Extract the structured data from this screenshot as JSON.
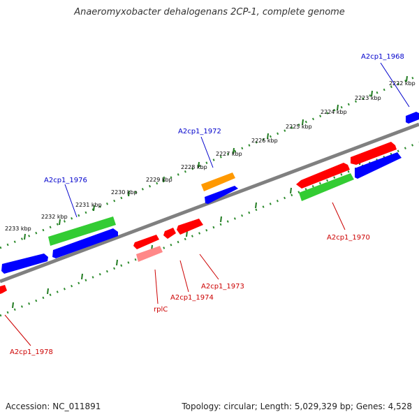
{
  "title": "Anaeromyxobacter dehalogenans 2CP-1, complete genome",
  "footer": {
    "accession": "Accession: NC_011891",
    "stats": "Topology: circular; Length: 5,029,329 bp; Genes: 4,528"
  },
  "ruler_labels": [
    "2222 kbp",
    "2223 kbp",
    "2224 kbp",
    "2225 kbp",
    "2226 kbp",
    "2227 kbp",
    "2228 kbp",
    "2229 kbp",
    "2230 kbp",
    "2231 kbp",
    "2232 kbp",
    "2233 kbp"
  ],
  "gene_labels": {
    "a2cp1_1968": "A2cp1_1968",
    "a2cp1_1972": "A2cp1_1972",
    "a2cp1_1976": "A2cp1_1976",
    "a2cp1_1970": "A2cp1_1970",
    "a2cp1_1973": "A2cp1_1973",
    "a2cp1_1974": "A2cp1_1974",
    "rplc": "rplC",
    "a2cp1_1978": "A2cp1_1978"
  },
  "colors": {
    "backbone": "#808080",
    "ruler_dots": "#2e8b2e",
    "forward_label": "#0000cc",
    "reverse_label": "#cc0000",
    "red": "#ff0000",
    "blue": "#0000ff",
    "green": "#33cc33",
    "orange": "#ff9900",
    "pink": "#ff8888"
  }
}
